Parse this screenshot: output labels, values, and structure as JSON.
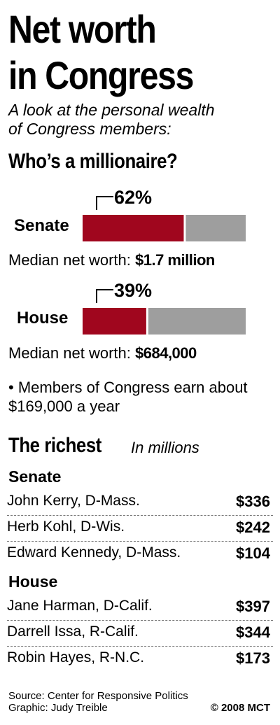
{
  "title_line1": "Net worth",
  "title_line2": "in Congress",
  "subtitle_line1": "A look at the personal wealth",
  "subtitle_line2": "of Congress members:",
  "millionaire_heading": "Who’s a millionaire?",
  "median_label": "Median net worth:",
  "note_text": "• Members of Congress earn about $169,000 a year",
  "richest_heading": "The richest",
  "richest_unit": "In millions",
  "colors": {
    "millionaire": "#a0061e",
    "other": "#9e9e9e"
  },
  "chart_data": [
    {
      "type": "bar",
      "orientation": "horizontal-stacked",
      "title": "Who’s a millionaire?",
      "categories": [
        "Senate",
        "House"
      ],
      "values": [
        62,
        39
      ],
      "value_labels": [
        "62%",
        "39%"
      ],
      "xlim": [
        0,
        100
      ],
      "median_values": [
        "$1.7 million",
        "$684,000"
      ]
    },
    {
      "type": "table",
      "title": "The richest",
      "unit": "In millions",
      "groups": [
        {
          "name": "Senate",
          "rows": [
            {
              "name": "John Kerry, D-Mass.",
              "value": 336,
              "label": "$336"
            },
            {
              "name": "Herb Kohl, D-Wis.",
              "value": 242,
              "label": "$242"
            },
            {
              "name": "Edward Kennedy, D-Mass.",
              "value": 104,
              "label": "$104"
            }
          ]
        },
        {
          "name": "House",
          "rows": [
            {
              "name": "Jane Harman, D-Calif.",
              "value": 397,
              "label": "$397"
            },
            {
              "name": "Darrell Issa, R-Calif.",
              "value": 344,
              "label": "$344"
            },
            {
              "name": "Robin Hayes, R-N.C.",
              "value": 173,
              "label": "$173"
            }
          ]
        }
      ]
    }
  ],
  "footer": {
    "source": "Source: Center for Responsive Politics",
    "graphic": "Graphic: Judy Treible",
    "copyright": "© 2008 MCT"
  }
}
